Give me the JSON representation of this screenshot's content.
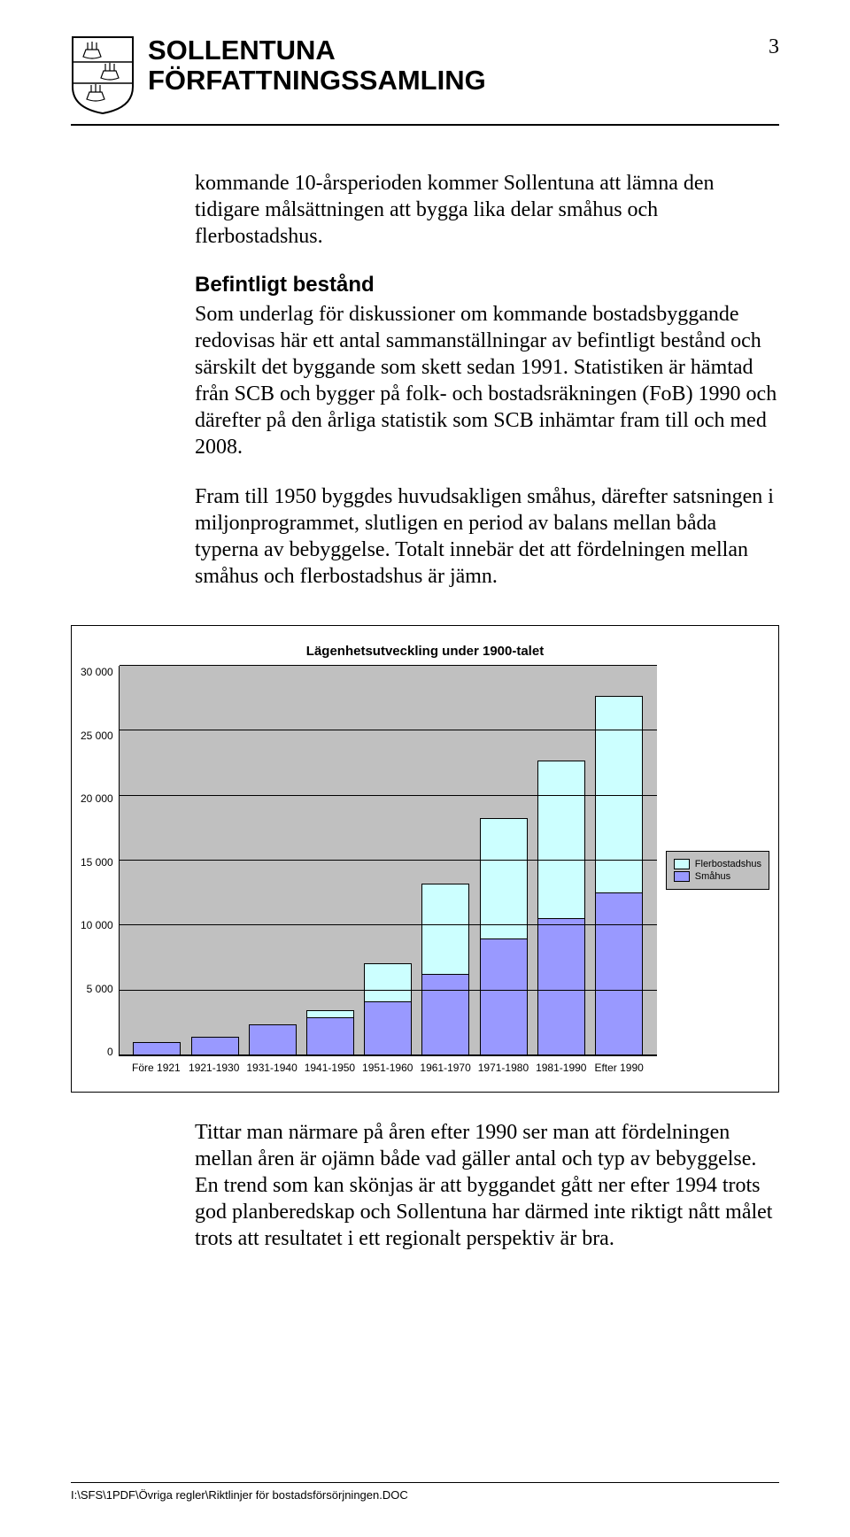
{
  "header": {
    "line1": "SOLLENTUNA",
    "line2": "FÖRFATTNINGSSAMLING",
    "page_number": "3"
  },
  "para1": "kommande 10-årsperioden kommer Sollentuna att lämna den tidigare målsättningen att bygga lika delar småhus och flerbostadshus.",
  "section_heading": "Befintligt bestånd",
  "para2": "Som underlag för diskussioner om kommande bostadsbyggande redovisas här ett antal sammanställningar av befintligt bestånd och särskilt det byggande som skett sedan 1991. Statistiken är hämtad från SCB och bygger på folk- och bostadsräkningen (FoB) 1990 och därefter på den årliga statistik som SCB inhämtar fram till och med 2008.",
  "para3": "Fram till 1950 byggdes huvudsakligen småhus, därefter satsningen i miljonprogrammet, slutligen en period av balans mellan båda typerna av bebyggelse. Totalt innebär det att fördelningen mellan småhus och flerbostadshus är jämn.",
  "para4": "Tittar man närmare på åren efter 1990 ser man att fördelningen mellan åren är ojämn både vad gäller antal och typ av bebyggelse. En trend som kan skönjas är att byggandet gått ner efter 1994 trots god planberedskap och Sollentuna har därmed inte riktigt nått målet trots att resultatet i ett regionalt perspektiv är bra.",
  "footer_path": "I:\\SFS\\1PDF\\Övriga regler\\Riktlinjer för bostadsförsörjningen.DOC",
  "chart": {
    "type": "stacked-bar",
    "title": "Lägenhetsutveckling under 1900-talet",
    "y_max": 30000,
    "y_ticks": [
      "30 000",
      "25 000",
      "20 000",
      "15 000",
      "10 000",
      "5 000",
      "0"
    ],
    "categories": [
      "Före 1921",
      "1921-1930",
      "1931-1940",
      "1941-1950",
      "1951-1960",
      "1961-1970",
      "1971-1980",
      "1981-1990",
      "Efter 1990"
    ],
    "series": [
      {
        "name": "Flerbostadshus",
        "color": "#ccffff"
      },
      {
        "name": "Småhus",
        "color": "#9999ff"
      }
    ],
    "data": {
      "smahus": [
        1000,
        1400,
        2400,
        2900,
        4100,
        6200,
        8900,
        10500,
        12500
      ],
      "flerbostadshus": [
        0,
        0,
        0,
        600,
        3000,
        7000,
        9400,
        12200,
        15200
      ]
    },
    "plot_bg": "#c0c0c0",
    "grid_color": "#000000",
    "legend": {
      "items": [
        {
          "label": "Flerbostadshus",
          "color": "#ccffff"
        },
        {
          "label": "Småhus",
          "color": "#9999ff"
        }
      ]
    }
  }
}
